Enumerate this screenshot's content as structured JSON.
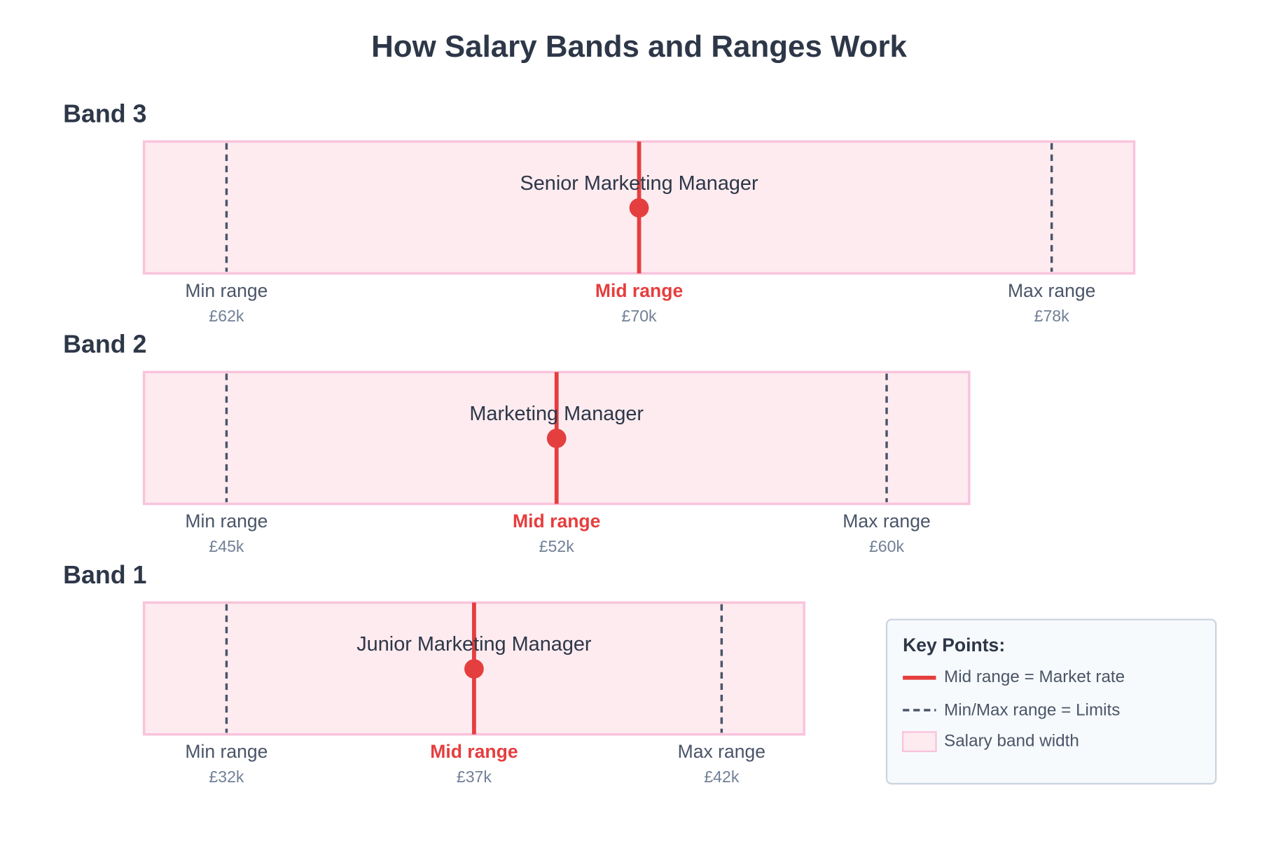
{
  "title": "How Salary Bands and Ranges Work",
  "bands": [
    {
      "name": "Band 3",
      "role": "Senior Marketing Manager",
      "min": {
        "label": "Min range",
        "value": "£62k"
      },
      "mid": {
        "label": "Mid range",
        "value": "£70k"
      },
      "max": {
        "label": "Max range",
        "value": "£78k"
      }
    },
    {
      "name": "Band 2",
      "role": "Marketing Manager",
      "min": {
        "label": "Min range",
        "value": "£45k"
      },
      "mid": {
        "label": "Mid range",
        "value": "£52k"
      },
      "max": {
        "label": "Max range",
        "value": "£60k"
      }
    },
    {
      "name": "Band 1",
      "role": "Junior Marketing Manager",
      "min": {
        "label": "Min range",
        "value": "£32k"
      },
      "mid": {
        "label": "Mid range",
        "value": "£37k"
      },
      "max": {
        "label": "Max range",
        "value": "£42k"
      }
    }
  ],
  "legend": {
    "title": "Key Points:",
    "items": [
      "Mid range = Market rate",
      "Min/Max range = Limits",
      "Salary band width"
    ]
  }
}
